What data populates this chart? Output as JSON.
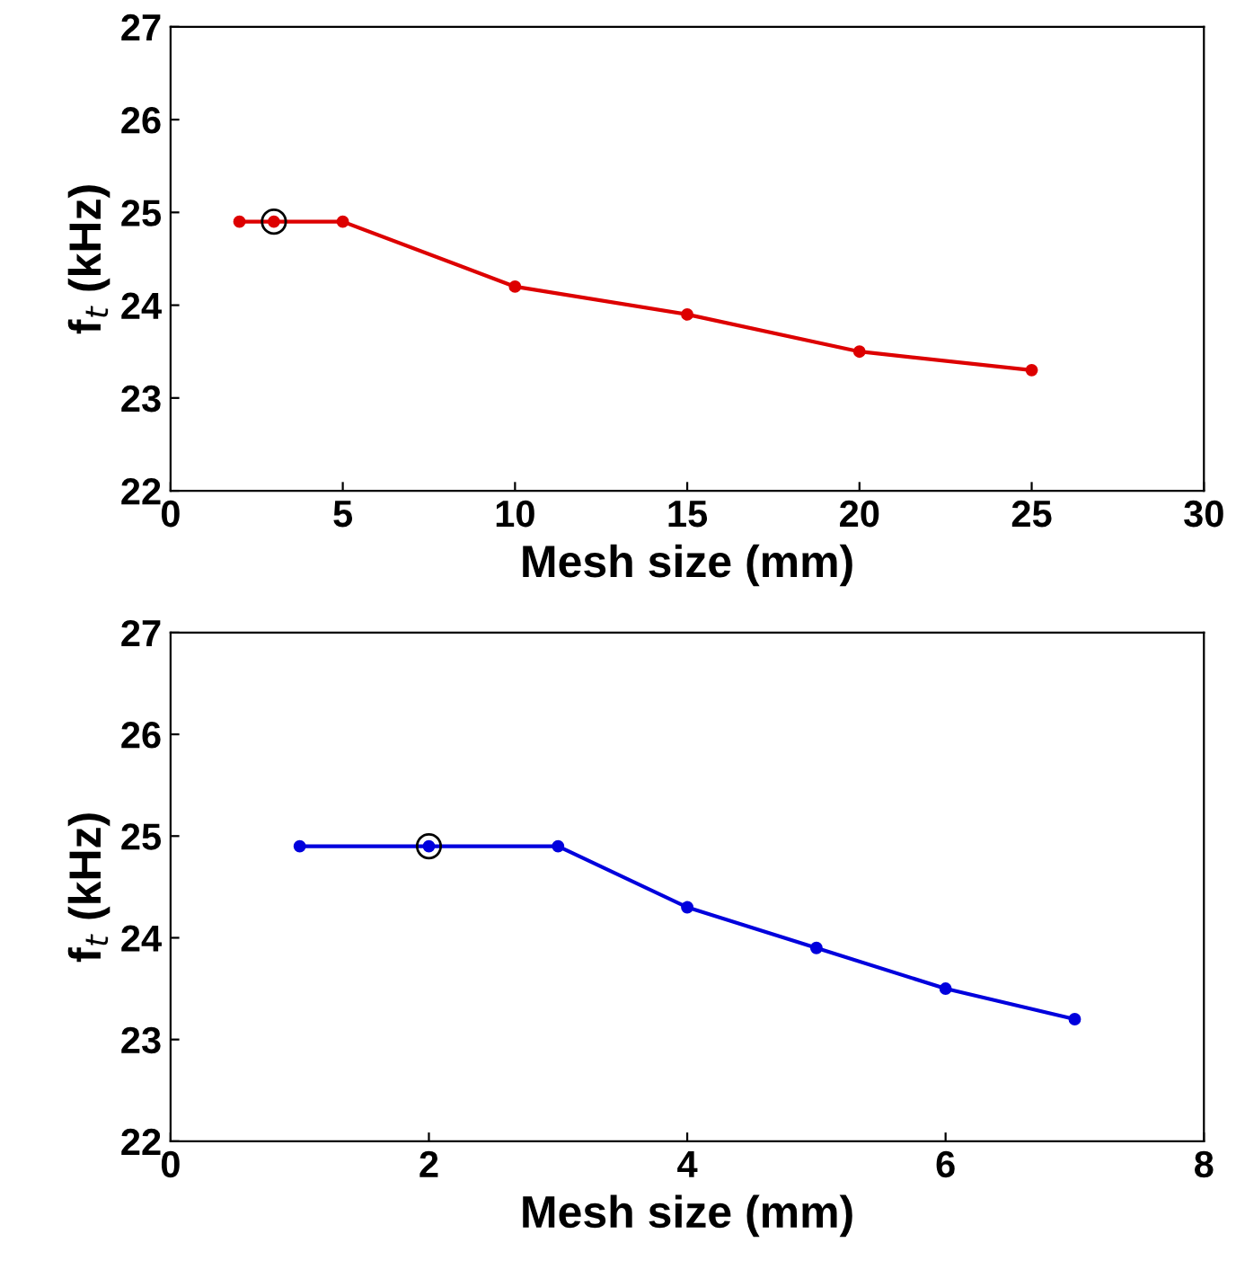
{
  "chart_data": [
    {
      "type": "line",
      "xlabel": "Mesh size (mm)",
      "ylabel": "f$_{t}$ (kHz)",
      "xlim": [
        0,
        30
      ],
      "xticks": [
        0,
        5,
        10,
        15,
        20,
        25,
        30
      ],
      "ylim": [
        22,
        27
      ],
      "yticks": [
        22,
        23,
        24,
        25,
        26,
        27
      ],
      "grid": false,
      "legend": false,
      "marker": "circle",
      "line_style": "solid",
      "series": [
        {
          "color": "#dd0000",
          "x": [
            2,
            3,
            5,
            10,
            15,
            20,
            25
          ],
          "values": [
            24.9,
            24.9,
            24.9,
            24.2,
            23.9,
            23.5,
            23.3
          ]
        },
        {
          "type": "scatter",
          "color": "#000000",
          "x": [
            3
          ],
          "values": [
            24.9
          ]
        }
      ]
    },
    {
      "type": "line",
      "xlabel": "Mesh size (mm)",
      "ylabel": "f$_{t}$ (kHz)",
      "xlim": [
        0,
        8
      ],
      "xticks": [
        0,
        2,
        4,
        6,
        8
      ],
      "ylim": [
        22,
        27
      ],
      "yticks": [
        22,
        23,
        24,
        25,
        26,
        27
      ],
      "grid": false,
      "legend": false,
      "marker": "circle",
      "line_style": "solid",
      "series": [
        {
          "color": "#0000dd",
          "x": [
            1,
            2,
            3,
            4,
            5,
            6,
            7
          ],
          "values": [
            24.9,
            24.9,
            24.9,
            24.3,
            23.9,
            23.5,
            23.2
          ]
        },
        {
          "type": "scatter",
          "color": "#000000",
          "x": [
            2
          ],
          "values": [
            24.9
          ]
        }
      ]
    }
  ]
}
